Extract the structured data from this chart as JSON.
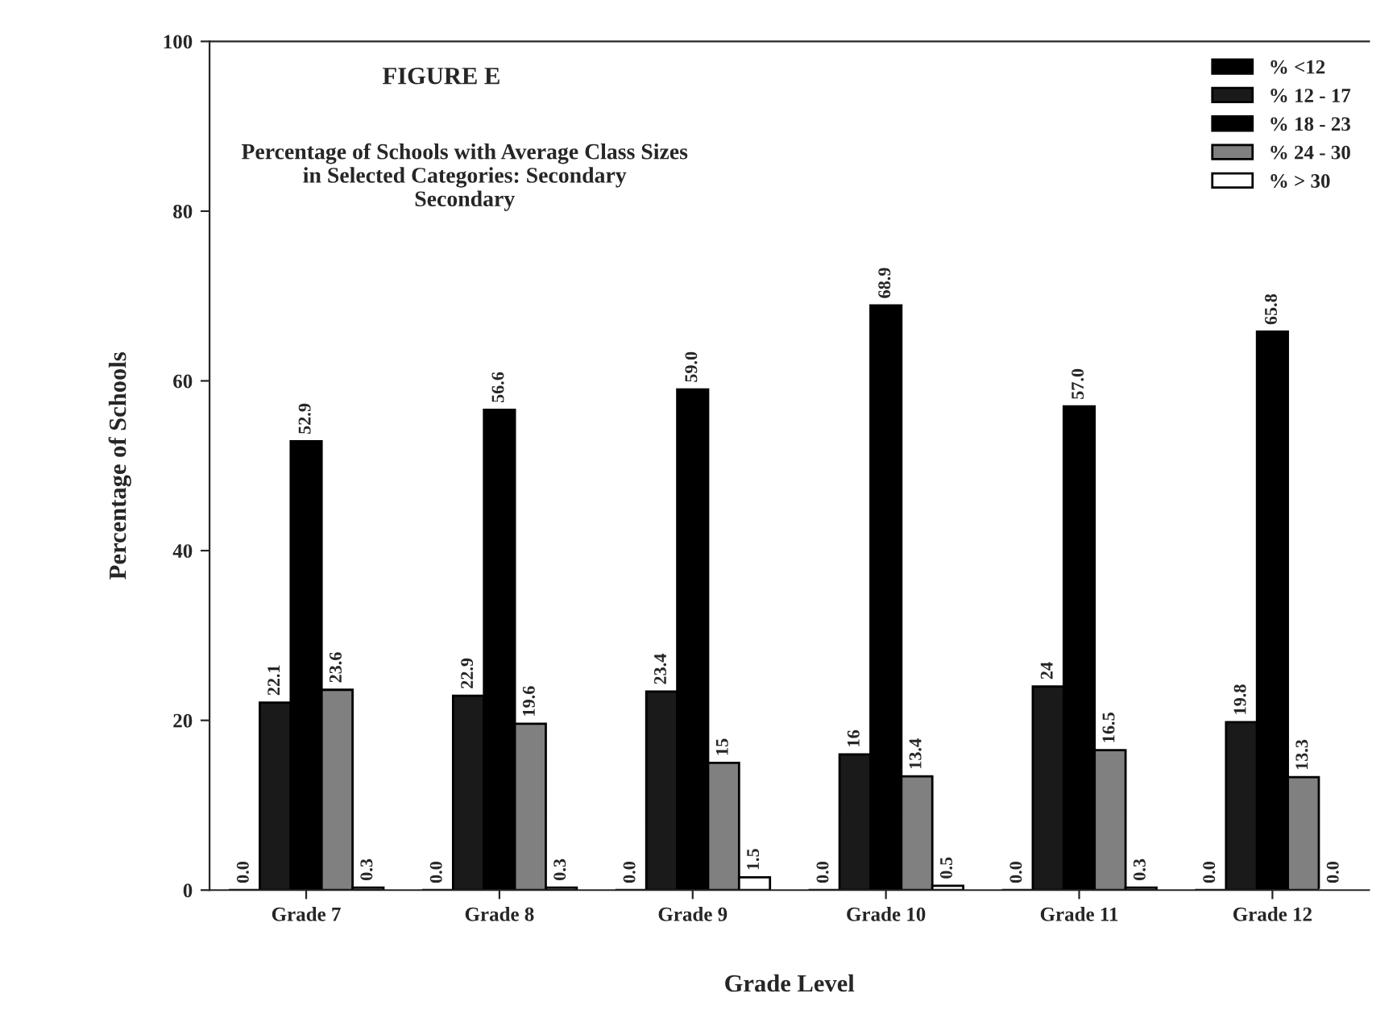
{
  "chart_data": {
    "type": "bar",
    "title": "FIGURE E",
    "subtitle": "Percentage of Schools with Average Class Sizes\nin Selected Categories: Secondary\nSecondary",
    "xlabel": "Grade Level",
    "ylabel": "Percentage of Schools",
    "categories": [
      "Grade 7",
      "Grade 8",
      "Grade 9",
      "Grade 10",
      "Grade 11",
      "Grade 12"
    ],
    "series": [
      {
        "name": "% <12",
        "color": "#000000",
        "values": [
          0.0,
          0.0,
          0.0,
          0.0,
          0.0,
          0.0
        ],
        "value_labels": [
          "0.0",
          "0.0",
          "0.0",
          "0.0",
          "0.0",
          "0.0"
        ]
      },
      {
        "name": "% 12 - 17",
        "color": "#1a1a1a",
        "values": [
          22.1,
          22.9,
          23.4,
          16,
          24,
          19.8
        ],
        "value_labels": [
          "22.1",
          "22.9",
          "23.4",
          "16",
          "24",
          "19.8"
        ]
      },
      {
        "name": "% 18 - 23",
        "color": "#000000",
        "values": [
          52.9,
          56.6,
          59.0,
          68.9,
          57.0,
          65.8
        ],
        "value_labels": [
          "52.9",
          "56.6",
          "59.0",
          "68.9",
          "57.0",
          "65.8"
        ]
      },
      {
        "name": "% 24 - 30",
        "color": "#808080",
        "values": [
          23.6,
          19.6,
          15,
          13.4,
          16.5,
          13.3
        ],
        "value_labels": [
          "23.6",
          "19.6",
          "15",
          "13.4",
          "16.5",
          "13.3"
        ]
      },
      {
        "name": "% > 30",
        "color": "#ffffff",
        "values": [
          0.3,
          0.3,
          1.5,
          0.5,
          0.3,
          0.0
        ],
        "value_labels": [
          "0.3",
          "0.3",
          "1.5",
          "0.5",
          "0.3",
          "0.0"
        ]
      }
    ],
    "ylim": [
      0,
      100
    ],
    "yticks": [
      0,
      20,
      40,
      60,
      80,
      100
    ],
    "grid": false,
    "legend": "top right"
  }
}
